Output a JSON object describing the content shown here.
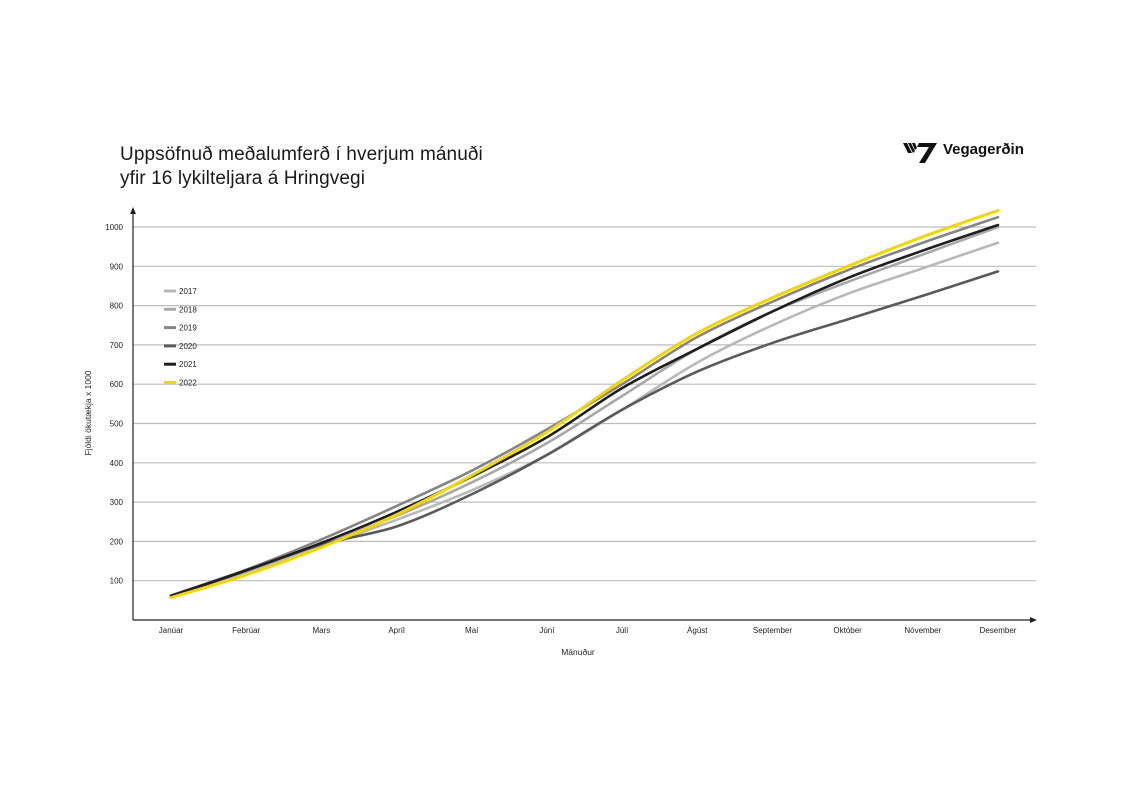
{
  "title": {
    "line1": "Uppsöfnuð meðalumferð í hverjum mánuði",
    "line2": "yfir 16 lykilteljara á Hringvegi"
  },
  "brand": {
    "name": "Vegagerðin",
    "icon": "road-stripes-logo-icon",
    "color": "#111111"
  },
  "chart_data": {
    "type": "line",
    "xlabel": "Mánuður",
    "ylabel": "Fjöldi ökutækja x 1000",
    "categories": [
      "Janúar",
      "Febrúar",
      "Mars",
      "Apríl",
      "Maí",
      "Júní",
      "Júlí",
      "Ágúst",
      "September",
      "Október",
      "Nóvember",
      "Desember"
    ],
    "ylim": [
      0,
      1050
    ],
    "yticks": [
      100,
      200,
      300,
      400,
      500,
      600,
      700,
      800,
      900,
      1000
    ],
    "grid": true,
    "legend_position": "left",
    "series": [
      {
        "name": "2017",
        "color": "#b8b8b8",
        "values": [
          60,
          122,
          188,
          255,
          330,
          420,
          535,
          655,
          750,
          830,
          895,
          960
        ]
      },
      {
        "name": "2018",
        "color": "#a8a8a8",
        "values": [
          62,
          125,
          193,
          265,
          350,
          450,
          570,
          690,
          785,
          860,
          930,
          1000
        ]
      },
      {
        "name": "2019",
        "color": "#858585",
        "values": [
          62,
          128,
          205,
          290,
          380,
          485,
          600,
          720,
          810,
          890,
          960,
          1025
        ]
      },
      {
        "name": "2020",
        "color": "#5a5a5a",
        "values": [
          62,
          127,
          192,
          238,
          320,
          420,
          535,
          632,
          705,
          765,
          825,
          887
        ]
      },
      {
        "name": "2021",
        "color": "#1f1f1f",
        "values": [
          61,
          126,
          196,
          275,
          365,
          465,
          590,
          690,
          785,
          870,
          940,
          1005
        ]
      },
      {
        "name": "2022",
        "color": "#f2d600",
        "values": [
          57,
          115,
          185,
          268,
          368,
          478,
          610,
          730,
          820,
          900,
          975,
          1042
        ]
      }
    ]
  }
}
